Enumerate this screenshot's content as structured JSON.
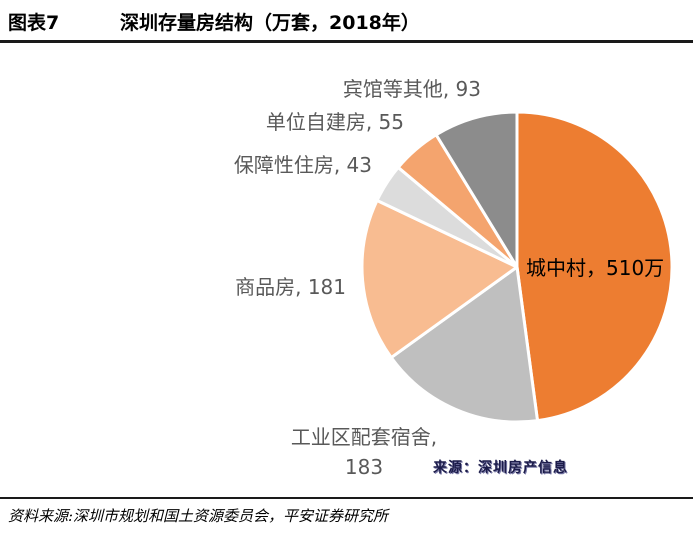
{
  "figure": {
    "number": "图表7",
    "title": "深圳存量房结构（万套，2018年）"
  },
  "source": "资料来源:深圳市规划和国土资源委员会，平安证券研究所",
  "watermark": "来源：深圳房产信息",
  "chart_data": {
    "type": "pie",
    "title": "深圳存量房结构（万套，2018年）",
    "unit": "万套",
    "start_angle_deg": 0,
    "direction": "clockwise",
    "slices": [
      {
        "label": "城中村",
        "value": 510,
        "text": "城中村，510万",
        "color": "#ED7D31"
      },
      {
        "label": "工业区配套宿舍",
        "value": 183,
        "text": "工业区配套宿舍,",
        "text2": "183",
        "color": "#BFBFBF"
      },
      {
        "label": "商品房",
        "value": 181,
        "text": "商品房, 181",
        "color": "#F8BC91"
      },
      {
        "label": "保障性住房",
        "value": 43,
        "text": "保障性住房, 43",
        "color": "#DCDCDC"
      },
      {
        "label": "单位自建房",
        "value": 55,
        "text": "单位自建房, 55",
        "color": "#F4A46E"
      },
      {
        "label": "宾馆等其他",
        "value": 93,
        "text": "宾馆等其他, 93",
        "color": "#8C8C8C"
      }
    ]
  }
}
